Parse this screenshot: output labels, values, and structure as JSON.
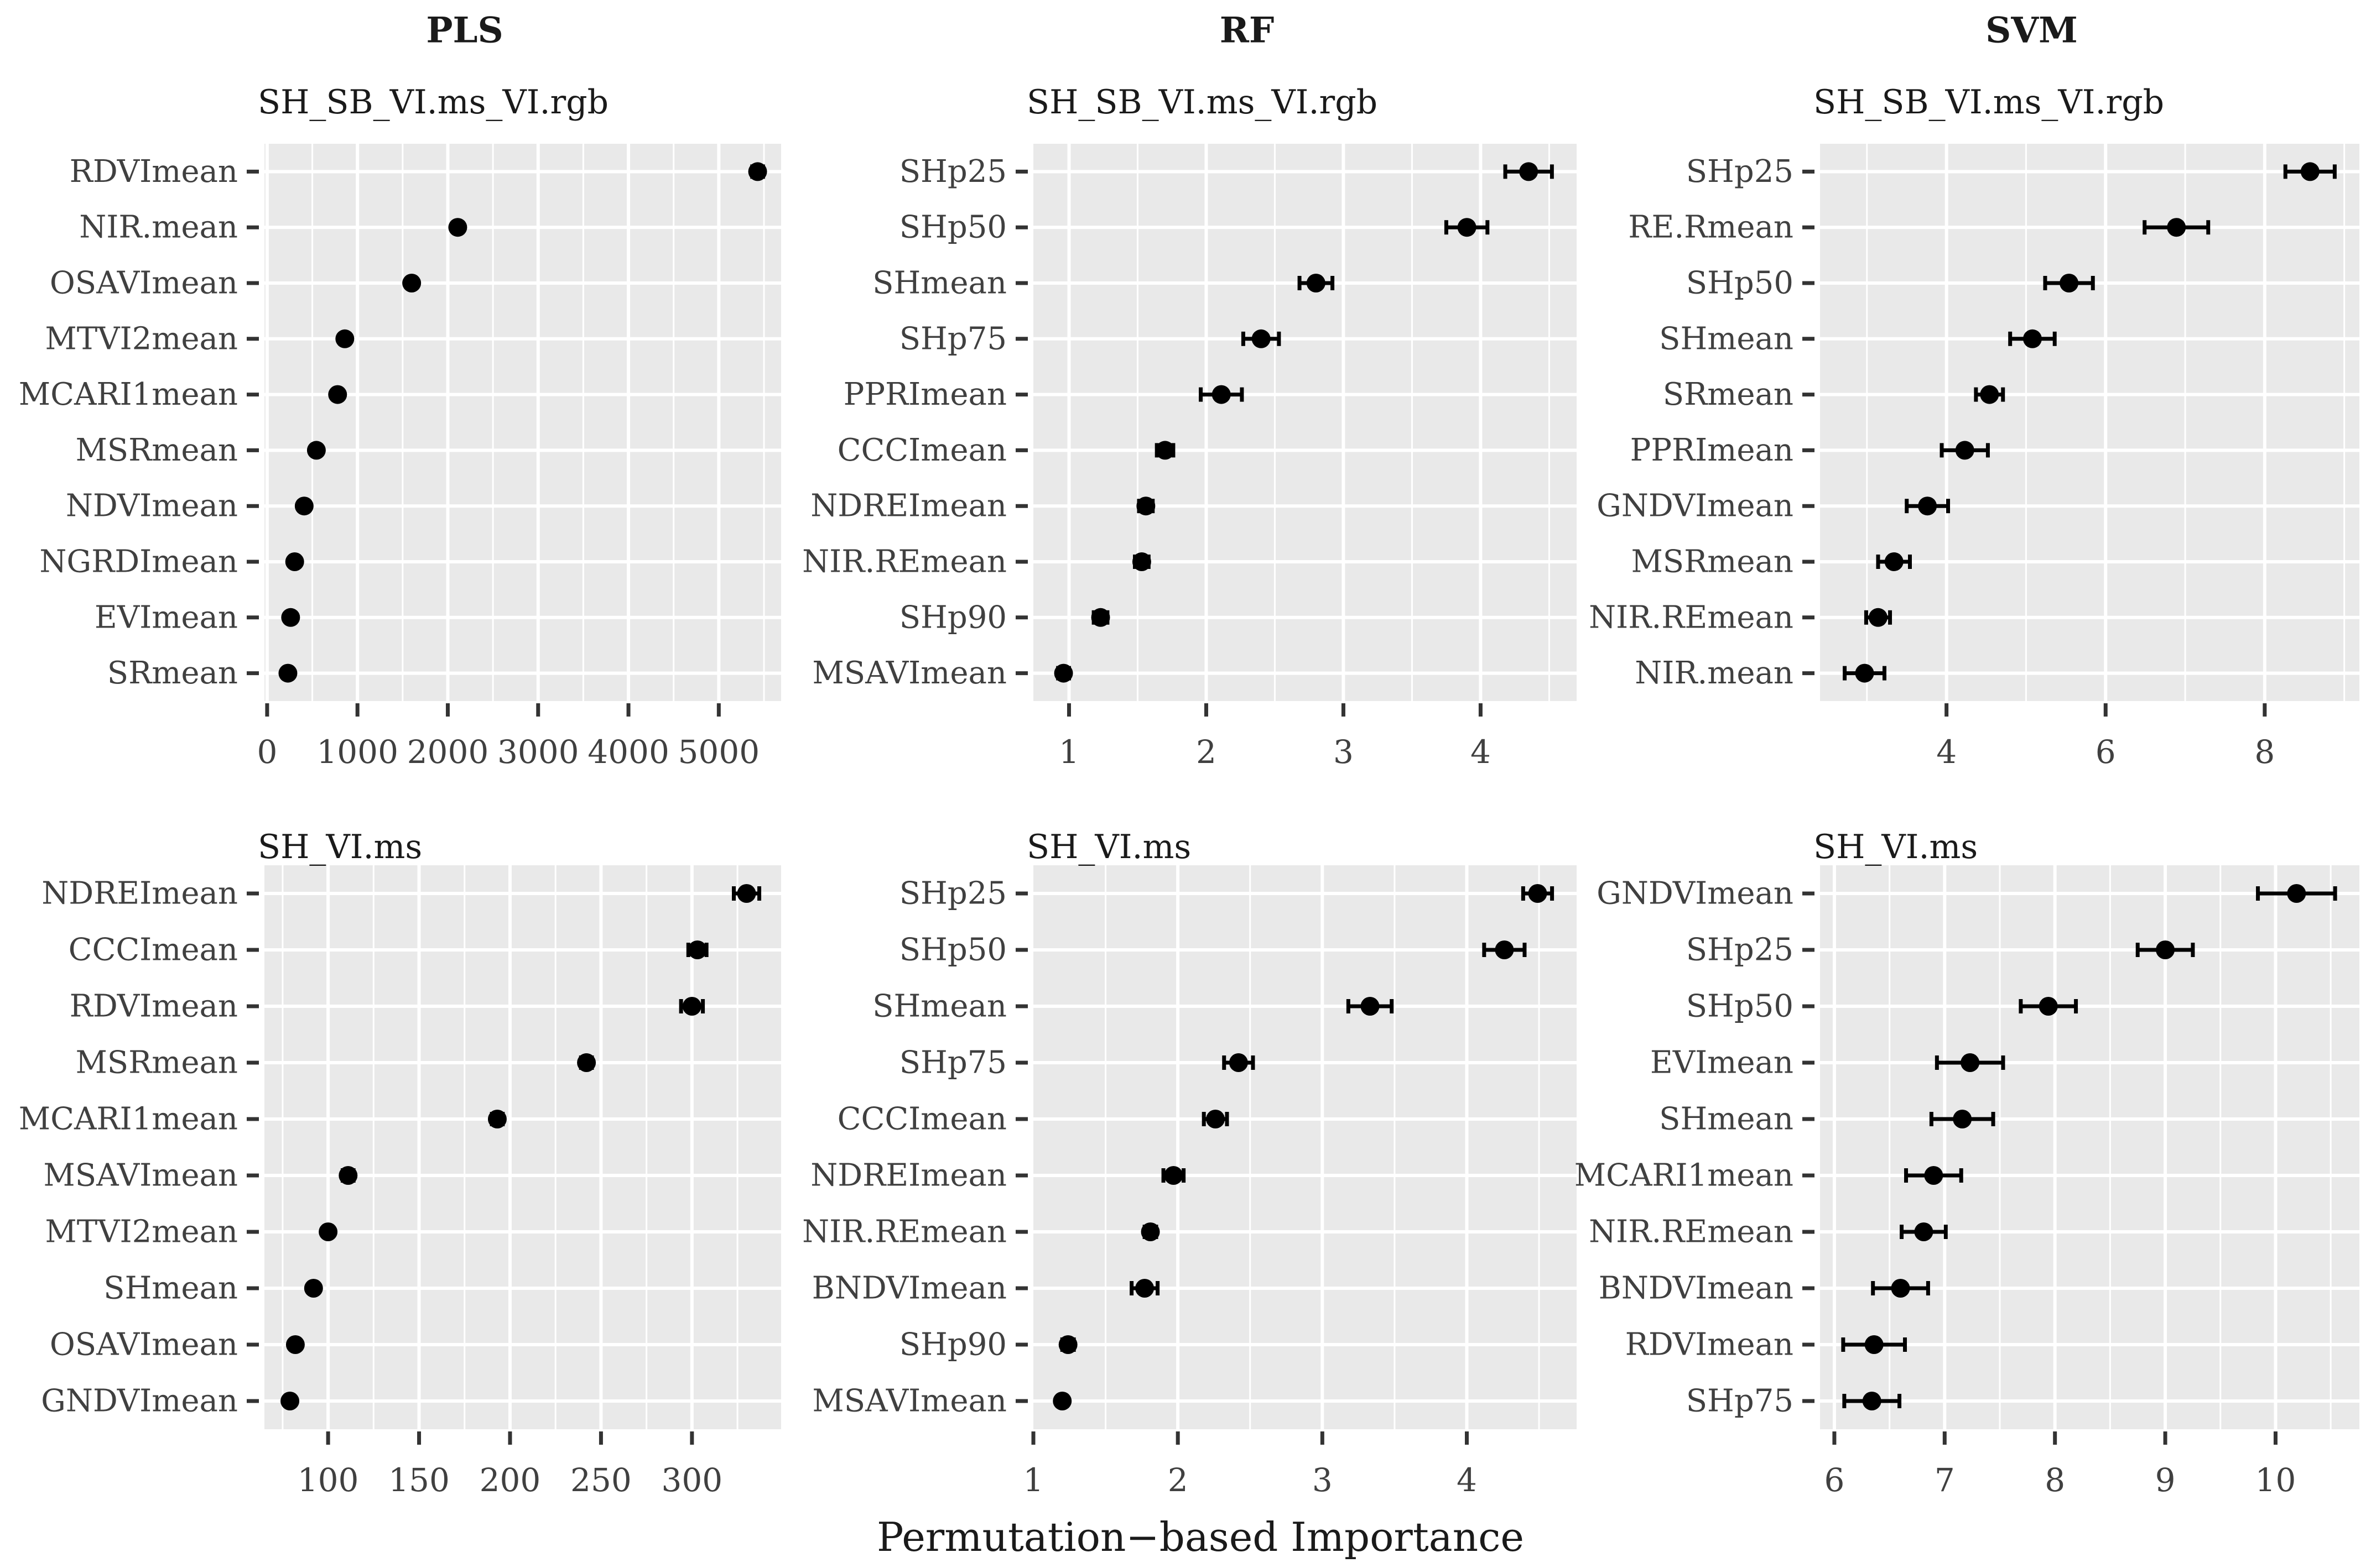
{
  "figure": {
    "x_axis_title": "Permutation−based Importance"
  },
  "colors": {
    "panel_background": "#e9e9e9",
    "gridline": "#ffffff",
    "point": "#000000",
    "axis_text": "#404040",
    "tick_mark": "#333333",
    "title_text": "#1a1a1a"
  },
  "chart_data": [
    {
      "type": "dot",
      "orientation": "horizontal",
      "model": "PLS",
      "title": "SH_SB_VI.ms_VI.rgb",
      "categories": [
        "RDVImean",
        "NIR.mean",
        "OSAVImean",
        "MTVI2mean",
        "MCARI1mean",
        "MSRmean",
        "NDVImean",
        "NGRDImean",
        "EVImean",
        "SRmean"
      ],
      "values": [
        5430,
        2110,
        1600,
        860,
        780,
        545,
        410,
        305,
        260,
        230
      ],
      "errors": [
        60,
        45,
        40,
        35,
        35,
        30,
        25,
        25,
        20,
        20
      ],
      "x_ticks": [
        0,
        1000,
        2000,
        3000,
        4000,
        5000
      ],
      "xlim": [
        -30,
        5690
      ]
    },
    {
      "type": "dot",
      "orientation": "horizontal",
      "model": "RF",
      "title": "SH_SB_VI.ms_VI.rgb",
      "categories": [
        "SHp25",
        "SHp50",
        "SHmean",
        "SHp75",
        "PPRImean",
        "CCCImean",
        "NDREImean",
        "NIR.REmean",
        "SHp90",
        "MSAVImean"
      ],
      "values": [
        4.35,
        3.9,
        2.8,
        2.4,
        2.11,
        1.7,
        1.56,
        1.53,
        1.23,
        0.96
      ],
      "errors": [
        0.17,
        0.15,
        0.12,
        0.13,
        0.15,
        0.06,
        0.05,
        0.05,
        0.05,
        0.04
      ],
      "x_ticks": [
        1,
        2,
        3,
        4
      ],
      "xlim": [
        0.74,
        4.7
      ]
    },
    {
      "type": "dot",
      "orientation": "horizontal",
      "model": "SVM",
      "title": "SH_SB_VI.ms_VI.rgb",
      "categories": [
        "SHp25",
        "RE.Rmean",
        "SHp50",
        "SHmean",
        "SRmean",
        "PPRImean",
        "GNDVImean",
        "MSRmean",
        "NIR.REmean",
        "NIR.mean"
      ],
      "values": [
        8.57,
        6.89,
        5.54,
        5.08,
        4.54,
        4.23,
        3.76,
        3.34,
        3.14,
        2.97
      ],
      "errors": [
        0.31,
        0.4,
        0.3,
        0.28,
        0.17,
        0.29,
        0.26,
        0.2,
        0.15,
        0.25
      ],
      "x_ticks": [
        4,
        6,
        8
      ],
      "xlim": [
        2.41,
        9.19
      ]
    },
    {
      "type": "dot",
      "orientation": "horizontal",
      "model": "PLS",
      "title": "SH_VI.ms",
      "categories": [
        "NDREImean",
        "CCCImean",
        "RDVImean",
        "MSRmean",
        "MCARI1mean",
        "MSAVImean",
        "MTVI2mean",
        "SHmean",
        "OSAVImean",
        "GNDVImean"
      ],
      "values": [
        330,
        303,
        300,
        242,
        193,
        111,
        100,
        92,
        82,
        79
      ],
      "errors": [
        7,
        5,
        6,
        3,
        3,
        3,
        2,
        2,
        2,
        2
      ],
      "x_ticks": [
        100,
        150,
        200,
        250,
        300,
        350
      ],
      "xlim": [
        65,
        349
      ]
    },
    {
      "type": "dot",
      "orientation": "horizontal",
      "model": "RF",
      "title": "SH_VI.ms",
      "categories": [
        "SHp25",
        "SHp50",
        "SHmean",
        "SHp75",
        "CCCImean",
        "NDREImean",
        "NIR.REmean",
        "BNDVImean",
        "SHp90",
        "MSAVImean"
      ],
      "values": [
        4.49,
        4.26,
        3.33,
        2.42,
        2.26,
        1.97,
        1.81,
        1.77,
        1.24,
        1.2
      ],
      "errors": [
        0.1,
        0.14,
        0.15,
        0.1,
        0.08,
        0.07,
        0.04,
        0.09,
        0.04,
        0.03
      ],
      "x_ticks": [
        1,
        2,
        3,
        4
      ],
      "xlim": [
        1.0,
        4.76
      ]
    },
    {
      "type": "dot",
      "orientation": "horizontal",
      "model": "SVM",
      "title": "SH_VI.ms",
      "categories": [
        "GNDVImean",
        "SHp25",
        "SHp50",
        "EVImean",
        "SHmean",
        "MCARI1mean",
        "NIR.REmean",
        "BNDVImean",
        "RDVImean",
        "SHp75"
      ],
      "values": [
        10.19,
        9.0,
        7.94,
        7.23,
        7.16,
        6.9,
        6.81,
        6.6,
        6.36,
        6.34
      ],
      "errors": [
        0.35,
        0.25,
        0.25,
        0.3,
        0.28,
        0.25,
        0.2,
        0.25,
        0.28,
        0.25
      ],
      "x_ticks": [
        6,
        7,
        8,
        9,
        10
      ],
      "xlim": [
        5.87,
        10.76
      ]
    }
  ]
}
